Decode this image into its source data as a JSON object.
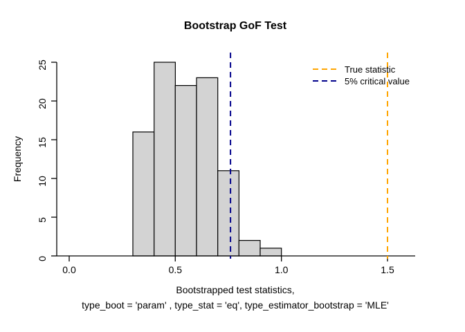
{
  "chart_data": {
    "type": "bar",
    "title": "Bootstrap GoF Test",
    "ylabel": "Frequency",
    "xlabel_line1": "Bootstrapped test statistics,",
    "xlabel_line2": "type_boot = 'param' , type_stat = 'eq', type_estimator_bootstrap = 'MLE'",
    "bin_start": 0.3,
    "bin_width": 0.1,
    "bin_edges": [
      0.3,
      0.4,
      0.5,
      0.6,
      0.7,
      0.8,
      0.9,
      1.0
    ],
    "values": [
      16,
      25,
      22,
      23,
      11,
      2,
      1
    ],
    "xlim": [
      0,
      1.5
    ],
    "ylim": [
      0,
      25
    ],
    "xtick_labels": [
      "0.0",
      "0.5",
      "1.0",
      "1.5"
    ],
    "ytick_labels": [
      "0",
      "5",
      "10",
      "15",
      "20",
      "25"
    ],
    "grid": "off",
    "bar_fill": "#d3d3d3",
    "bar_stroke": "#000000",
    "vlines": [
      {
        "x": 1.5,
        "color": "#ffa500",
        "label": "True statistic",
        "style": "dashed"
      },
      {
        "x": 0.76,
        "color": "#00008b",
        "label": "5% critical value",
        "style": "dashed"
      }
    ],
    "legend": {
      "position": "top-right",
      "entries": [
        {
          "label": "True statistic",
          "color": "#ffa500"
        },
        {
          "label": "5% critical value",
          "color": "#00008b"
        }
      ]
    }
  }
}
